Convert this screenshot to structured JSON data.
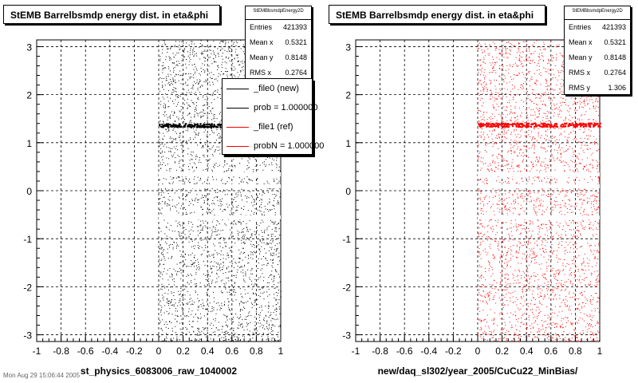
{
  "colors": {
    "new": "#000000",
    "ref": "#ff0000"
  },
  "stamp": "Mon Aug 29 15:06:44 2005",
  "legend": {
    "entries": [
      {
        "label": "_file0 (new)",
        "color": "#000000"
      },
      {
        "label": "prob = 1.000000",
        "color": "#000000"
      },
      {
        "label": "_file1 (ref)",
        "color": "#ff0000"
      },
      {
        "label": "probN = 1.000000",
        "color": "#ff0000"
      }
    ]
  },
  "chart_data": [
    {
      "type": "scatter",
      "title": "StEMB Barrelbsmdp energy dist. in eta&phi",
      "xlabel": "st_physics_6083006_raw_1040002",
      "ylabel": "",
      "xlim": [
        -1,
        1
      ],
      "ylim": [
        -3.14,
        3.14
      ],
      "x_ticks": [
        "-1",
        "-0.8",
        "-0.6",
        "-0.4",
        "-0.2",
        "0",
        "0.2",
        "0.4",
        "0.6",
        "0.8",
        "1"
      ],
      "y_ticks": [
        "-3",
        "-2",
        "-1",
        "0",
        "1",
        "2",
        "3"
      ],
      "grid": true,
      "series": [
        {
          "name": "_file0 (new)",
          "color": "#000000",
          "x_range": [
            0,
            1
          ],
          "y_range": [
            -3.14,
            3.14
          ],
          "hot_band_y": 1.37
        }
      ],
      "stats": {
        "name": "StEMBbsmdpEnergy2D",
        "rows": [
          {
            "label": "Entries",
            "value": "421393"
          },
          {
            "label": "Mean x",
            "value": "0.5321"
          },
          {
            "label": "Mean y",
            "value": "0.8148"
          },
          {
            "label": "RMS x",
            "value": "0.2764"
          }
        ]
      }
    },
    {
      "type": "scatter",
      "title": "StEMB Barrelbsmdp energy dist. in eta&phi",
      "xlabel": "new/daq_sl302/year_2005/CuCu22_MinBias/",
      "ylabel": "",
      "xlim": [
        -1,
        1
      ],
      "ylim": [
        -3.14,
        3.14
      ],
      "x_ticks": [
        "-1",
        "-0.8",
        "-0.6",
        "-0.4",
        "-0.2",
        "0",
        "0.2",
        "0.4",
        "0.6",
        "0.8",
        "1"
      ],
      "y_ticks": [
        "-3",
        "-2",
        "-1",
        "0",
        "1",
        "2",
        "3"
      ],
      "grid": true,
      "series": [
        {
          "name": "_file1 (ref)",
          "color": "#ff0000",
          "x_range": [
            0,
            1
          ],
          "y_range": [
            -3.14,
            3.14
          ],
          "hot_band_y": 1.38
        }
      ],
      "stats": {
        "name": "StEMBbsmdpEnergy2D",
        "rows": [
          {
            "label": "Entries",
            "value": "421393"
          },
          {
            "label": "Mean x",
            "value": "0.5321"
          },
          {
            "label": "Mean y",
            "value": "0.8148"
          },
          {
            "label": "RMS x",
            "value": "0.2764"
          },
          {
            "label": "RMS y",
            "value": "1.306"
          }
        ]
      }
    }
  ]
}
